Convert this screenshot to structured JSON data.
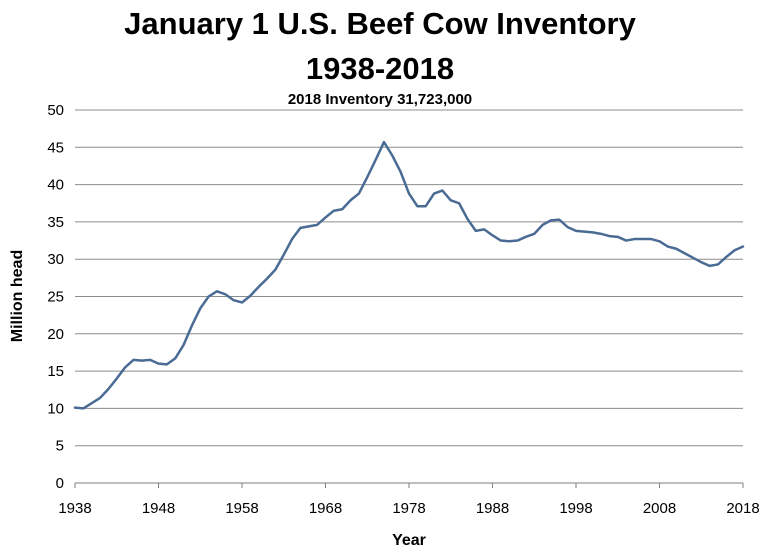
{
  "chart_data": {
    "type": "line",
    "title_line1": "January 1 U.S. Beef Cow Inventory",
    "title_line2": "1938-2018",
    "subtitle": "2018 Inventory 31,723,000",
    "xlabel": "Year",
    "ylabel": "Million head",
    "xlim": [
      1938,
      2018
    ],
    "ylim": [
      0,
      50
    ],
    "x_ticks": [
      1938,
      1948,
      1958,
      1968,
      1978,
      1988,
      1998,
      2008,
      2018
    ],
    "y_ticks": [
      0,
      5,
      10,
      15,
      20,
      25,
      30,
      35,
      40,
      45,
      50
    ],
    "grid": "horizontal",
    "line_color": "#4a6b93",
    "series": [
      {
        "x": [
          1938,
          1939,
          1940,
          1941,
          1942,
          1943,
          1944,
          1945,
          1946,
          1947,
          1948,
          1949,
          1950,
          1951,
          1952,
          1953,
          1954,
          1955,
          1956,
          1957,
          1958,
          1959,
          1960,
          1961,
          1962,
          1963,
          1964,
          1965,
          1966,
          1967,
          1968,
          1969,
          1970,
          1971,
          1972,
          1973,
          1974,
          1975,
          1976,
          1977,
          1978,
          1979,
          1980,
          1981,
          1982,
          1983,
          1984,
          1985,
          1986,
          1987,
          1988,
          1989,
          1990,
          1991,
          1992,
          1993,
          1994,
          1995,
          1996,
          1997,
          1998,
          1999,
          2000,
          2001,
          2002,
          2003,
          2004,
          2005,
          2006,
          2007,
          2008,
          2009,
          2010,
          2011,
          2012,
          2013,
          2014,
          2015,
          2016,
          2017,
          2018
        ],
        "values": [
          10.1,
          10.0,
          10.7,
          11.4,
          12.6,
          14.0,
          15.5,
          16.5,
          16.4,
          16.5,
          16.0,
          15.9,
          16.7,
          18.5,
          21.1,
          23.4,
          25.0,
          25.7,
          25.3,
          24.5,
          24.2,
          25.1,
          26.3,
          27.4,
          28.6,
          30.6,
          32.7,
          34.2,
          34.4,
          34.6,
          35.6,
          36.5,
          36.7,
          37.9,
          38.8,
          41.0,
          43.3,
          45.7,
          43.9,
          41.7,
          38.8,
          37.1,
          37.1,
          38.8,
          39.2,
          37.9,
          37.5,
          35.4,
          33.8,
          34.0,
          33.2,
          32.5,
          32.4,
          32.5,
          33.0,
          33.4,
          34.6,
          35.2,
          35.3,
          34.3,
          33.8,
          33.7,
          33.6,
          33.4,
          33.1,
          33.0,
          32.5,
          32.7,
          32.7,
          32.7,
          32.4,
          31.7,
          31.4,
          30.8,
          30.2,
          29.6,
          29.1,
          29.3,
          30.3,
          31.2,
          31.7
        ]
      }
    ]
  }
}
